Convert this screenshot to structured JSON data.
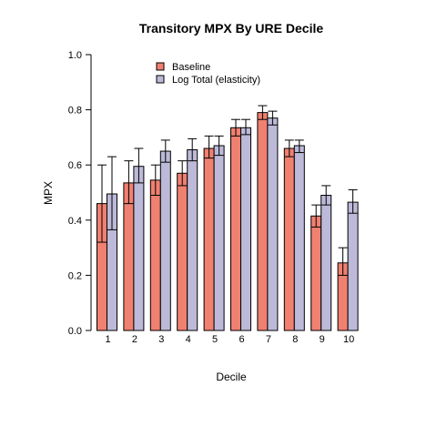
{
  "chart_data": {
    "type": "bar",
    "title": "Transitory MPX By URE Decile",
    "xlabel": "Decile",
    "ylabel": "MPX",
    "ylim": [
      0,
      1
    ],
    "yticks": [
      "0.0",
      "0.2",
      "0.4",
      "0.6",
      "0.8",
      "1.0"
    ],
    "categories": [
      "1",
      "2",
      "3",
      "4",
      "5",
      "6",
      "7",
      "8",
      "9",
      "10"
    ],
    "legend_position": "top-left",
    "grid": false,
    "series": [
      {
        "name": "Baseline",
        "color": "#F08070",
        "values": [
          0.46,
          0.535,
          0.545,
          0.57,
          0.66,
          0.735,
          0.79,
          0.66,
          0.415,
          0.245
        ],
        "error_low": [
          0.32,
          0.46,
          0.49,
          0.525,
          0.625,
          0.705,
          0.765,
          0.63,
          0.375,
          0.2
        ],
        "error_high": [
          0.6,
          0.615,
          0.6,
          0.615,
          0.705,
          0.765,
          0.815,
          0.69,
          0.455,
          0.3
        ]
      },
      {
        "name": "Log Total (elasticity)",
        "color": "#BCBAD8",
        "values": [
          0.495,
          0.595,
          0.65,
          0.655,
          0.67,
          0.735,
          0.77,
          0.67,
          0.49,
          0.465
        ],
        "error_low": [
          0.365,
          0.535,
          0.61,
          0.615,
          0.635,
          0.71,
          0.745,
          0.645,
          0.455,
          0.425
        ],
        "error_high": [
          0.63,
          0.66,
          0.69,
          0.695,
          0.705,
          0.765,
          0.795,
          0.69,
          0.525,
          0.51
        ]
      }
    ]
  }
}
